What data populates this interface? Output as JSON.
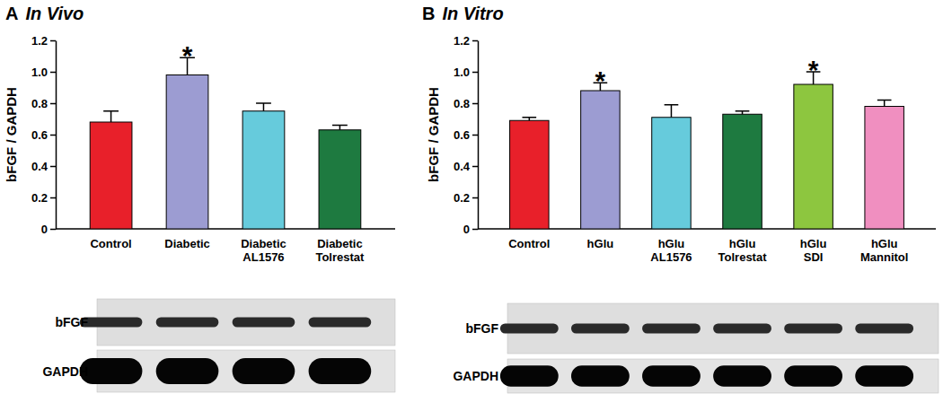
{
  "chart_data": [
    {
      "type": "bar",
      "panel": "A",
      "title": "In Vivo",
      "y_label": "bFGF / GAPDH",
      "categories": [
        "Control",
        "Diabetic",
        "Diabetic AL1576",
        "Diabetic Tolrestat"
      ],
      "values": [
        0.68,
        0.98,
        0.75,
        0.63
      ],
      "errors": [
        0.07,
        0.11,
        0.05,
        0.03
      ],
      "colors": [
        "#e8202a",
        "#9c9cd2",
        "#66cbdc",
        "#1e7a40"
      ],
      "ylim": [
        0,
        1.2
      ],
      "yticks": [
        0,
        0.2,
        0.4,
        0.6,
        0.8,
        {
          "value": 1,
          "label": "1.0"
        },
        1.2
      ],
      "annotations": [
        {
          "text": "*",
          "category": "Diabetic"
        }
      ],
      "blot_labels": [
        "bFGF",
        "GAPDH"
      ]
    },
    {
      "type": "bar",
      "panel": "B",
      "title": "In Vitro",
      "y_label": "bFGF / GAPDH",
      "categories": [
        "Control",
        "hGlu",
        "hGlu AL1576",
        "hGlu Tolrestat",
        "hGlu SDI",
        "hGlu Mannitol"
      ],
      "values": [
        0.69,
        0.88,
        0.71,
        0.73,
        0.92,
        0.78
      ],
      "errors": [
        0.02,
        0.05,
        0.08,
        0.02,
        0.08,
        0.04
      ],
      "colors": [
        "#e8202a",
        "#9c9cd2",
        "#66cbdc",
        "#1e7a40",
        "#8dc63f",
        "#f08fc0"
      ],
      "ylim": [
        0,
        1.2
      ],
      "yticks": [
        0,
        0.2,
        0.4,
        0.6,
        0.8,
        {
          "value": 1,
          "label": "1.0"
        },
        1.2
      ],
      "annotations": [
        {
          "text": "*",
          "category": "hGlu"
        },
        {
          "text": "*",
          "category": "hGlu SDI"
        }
      ],
      "blot_labels": [
        "bFGF",
        "GAPDH"
      ]
    }
  ]
}
